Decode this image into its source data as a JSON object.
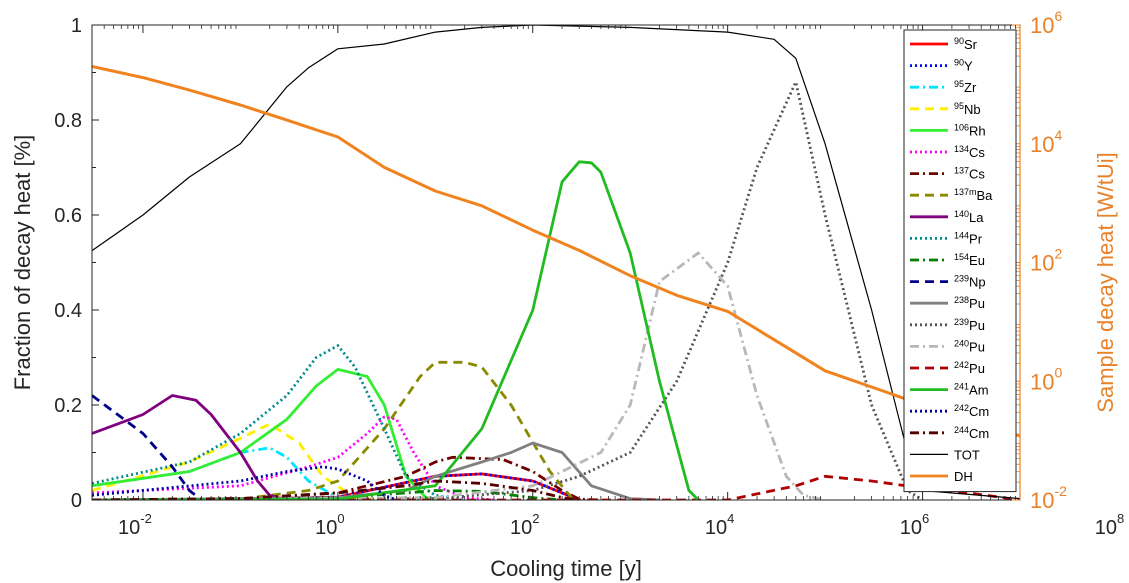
{
  "chart_data": {
    "type": "line",
    "xlabel": "Cooling time [y]",
    "ylabel": "Fraction of decay heat [%]",
    "y2label": "Sample decay heat [W/tUi]",
    "xscale": "log",
    "xlim": [
      0.003,
      10000000
    ],
    "ylim": [
      0,
      1
    ],
    "y2scale": "log",
    "y2lim": [
      0.01,
      1000000
    ],
    "x_ticks": [
      {
        "value": 0.01,
        "base": "10",
        "exp": "-2"
      },
      {
        "value": 1,
        "base": "10",
        "exp": "0"
      },
      {
        "value": 100,
        "base": "10",
        "exp": "2"
      },
      {
        "value": 10000,
        "base": "10",
        "exp": "4"
      },
      {
        "value": 1000000,
        "base": "10",
        "exp": "6"
      },
      {
        "value": 100000000,
        "base": "10",
        "exp": "8"
      }
    ],
    "y_ticks": [
      "0",
      "0.2",
      "0.4",
      "0.6",
      "0.8",
      "1"
    ],
    "y2_ticks": [
      {
        "value": 0.01,
        "base": "10",
        "exp": "-2"
      },
      {
        "value": 1,
        "base": "10",
        "exp": "0"
      },
      {
        "value": 100,
        "base": "10",
        "exp": "2"
      },
      {
        "value": 10000,
        "base": "10",
        "exp": "4"
      },
      {
        "value": 1000000,
        "base": "10",
        "exp": "6"
      }
    ],
    "legend_position": "right",
    "series": [
      {
        "mass": "90",
        "sym": "Sr",
        "color": "#ff0000",
        "style": "solid",
        "axis": "left",
        "points": [
          [
            0.003,
            0
          ],
          [
            0.1,
            0.002
          ],
          [
            1,
            0.006
          ],
          [
            10,
            0.05
          ],
          [
            30,
            0.055
          ],
          [
            100,
            0.04
          ],
          [
            200,
            0.015
          ],
          [
            300,
            0
          ]
        ]
      },
      {
        "mass": "90",
        "sym": "Y",
        "color": "#0000ff",
        "style": "dotted",
        "axis": "left",
        "points": [
          [
            0.003,
            0
          ],
          [
            0.1,
            0.002
          ],
          [
            1,
            0.006
          ],
          [
            10,
            0.05
          ],
          [
            30,
            0.055
          ],
          [
            100,
            0.04
          ],
          [
            200,
            0.015
          ],
          [
            300,
            0
          ]
        ]
      },
      {
        "mass": "95",
        "sym": "Zr",
        "color": "#00e5ff",
        "style": "dashdot",
        "axis": "left",
        "points": [
          [
            0.003,
            0.03
          ],
          [
            0.03,
            0.06
          ],
          [
            0.1,
            0.1
          ],
          [
            0.2,
            0.11
          ],
          [
            0.3,
            0.09
          ],
          [
            0.5,
            0.04
          ],
          [
            1,
            0.005
          ],
          [
            2,
            0
          ]
        ]
      },
      {
        "mass": "95",
        "sym": "Nb",
        "color": "#ffee00",
        "style": "dashed",
        "axis": "left",
        "points": [
          [
            0.003,
            0.02
          ],
          [
            0.03,
            0.08
          ],
          [
            0.1,
            0.13
          ],
          [
            0.2,
            0.16
          ],
          [
            0.4,
            0.12
          ],
          [
            0.7,
            0.05
          ],
          [
            1.5,
            0.005
          ],
          [
            3,
            0
          ]
        ]
      },
      {
        "mass": "106",
        "sym": "Rh",
        "color": "#33ee33",
        "style": "solid",
        "axis": "left",
        "points": [
          [
            0.003,
            0.03
          ],
          [
            0.03,
            0.06
          ],
          [
            0.1,
            0.1
          ],
          [
            0.3,
            0.17
          ],
          [
            0.6,
            0.24
          ],
          [
            1,
            0.275
          ],
          [
            2,
            0.26
          ],
          [
            3,
            0.2
          ],
          [
            5,
            0.05
          ],
          [
            8,
            0.005
          ],
          [
            12,
            0
          ]
        ]
      },
      {
        "mass": "134",
        "sym": "Cs",
        "color": "#ff00ff",
        "style": "dotted",
        "axis": "left",
        "points": [
          [
            0.003,
            0.015
          ],
          [
            0.1,
            0.03
          ],
          [
            0.5,
            0.07
          ],
          [
            1,
            0.09
          ],
          [
            2,
            0.14
          ],
          [
            3,
            0.175
          ],
          [
            4,
            0.17
          ],
          [
            6,
            0.1
          ],
          [
            10,
            0.03
          ],
          [
            20,
            0.005
          ],
          [
            40,
            0
          ]
        ]
      },
      {
        "mass": "137",
        "sym": "Cs",
        "color": "#6e0000",
        "style": "dashdot",
        "axis": "left",
        "points": [
          [
            0.003,
            0
          ],
          [
            0.1,
            0.003
          ],
          [
            1,
            0.015
          ],
          [
            5,
            0.05
          ],
          [
            10,
            0.08
          ],
          [
            15,
            0.09
          ],
          [
            50,
            0.085
          ],
          [
            100,
            0.06
          ],
          [
            200,
            0.02
          ],
          [
            300,
            0.002
          ],
          [
            500,
            0
          ]
        ]
      },
      {
        "mass": "137m",
        "sym": "Ba",
        "color": "#8a8a00",
        "style": "dashed",
        "axis": "left",
        "points": [
          [
            0.003,
            0
          ],
          [
            0.1,
            0.002
          ],
          [
            0.5,
            0.02
          ],
          [
            1,
            0.04
          ],
          [
            3,
            0.15
          ],
          [
            7,
            0.26
          ],
          [
            10,
            0.29
          ],
          [
            20,
            0.29
          ],
          [
            30,
            0.28
          ],
          [
            60,
            0.2
          ],
          [
            150,
            0.06
          ],
          [
            250,
            0.005
          ],
          [
            300,
            0
          ]
        ]
      },
      {
        "mass": "140",
        "sym": "La",
        "color": "#800080",
        "style": "solid",
        "axis": "left",
        "points": [
          [
            0.003,
            0.14
          ],
          [
            0.01,
            0.18
          ],
          [
            0.02,
            0.22
          ],
          [
            0.035,
            0.21
          ],
          [
            0.05,
            0.18
          ],
          [
            0.1,
            0.1
          ],
          [
            0.15,
            0.04
          ],
          [
            0.2,
            0.01
          ],
          [
            0.3,
            0
          ]
        ]
      },
      {
        "mass": "144",
        "sym": "Pr",
        "color": "#008b8b",
        "style": "dotted",
        "axis": "left",
        "points": [
          [
            0.003,
            0.035
          ],
          [
            0.03,
            0.08
          ],
          [
            0.1,
            0.14
          ],
          [
            0.3,
            0.22
          ],
          [
            0.6,
            0.3
          ],
          [
            1,
            0.325
          ],
          [
            1.5,
            0.28
          ],
          [
            3,
            0.15
          ],
          [
            5,
            0.05
          ],
          [
            10,
            0.01
          ],
          [
            20,
            0
          ]
        ]
      },
      {
        "mass": "154",
        "sym": "Eu",
        "color": "#008000",
        "style": "dashdot",
        "axis": "left",
        "points": [
          [
            0.003,
            0
          ],
          [
            1,
            0.005
          ],
          [
            5,
            0.015
          ],
          [
            10,
            0.02
          ],
          [
            30,
            0.018
          ],
          [
            100,
            0.005
          ],
          [
            200,
            0
          ]
        ]
      },
      {
        "mass": "239",
        "sym": "Np",
        "color": "#00008b",
        "style": "dashed",
        "axis": "left",
        "points": [
          [
            0.003,
            0.22
          ],
          [
            0.01,
            0.14
          ],
          [
            0.02,
            0.07
          ],
          [
            0.03,
            0.02
          ],
          [
            0.04,
            0
          ]
        ]
      },
      {
        "mass": "238",
        "sym": "Pu",
        "color": "#808080",
        "style": "solid",
        "axis": "left",
        "points": [
          [
            0.003,
            0
          ],
          [
            1,
            0.005
          ],
          [
            5,
            0.02
          ],
          [
            10,
            0.05
          ],
          [
            30,
            0.08
          ],
          [
            60,
            0.1
          ],
          [
            100,
            0.12
          ],
          [
            200,
            0.1
          ],
          [
            400,
            0.03
          ],
          [
            1000,
            0.003
          ],
          [
            2000,
            0
          ]
        ]
      },
      {
        "mass": "239",
        "sym": "Pu",
        "color": "#555555",
        "style": "dotted",
        "axis": "left",
        "points": [
          [
            0.003,
            0
          ],
          [
            10,
            0.003
          ],
          [
            100,
            0.02
          ],
          [
            300,
            0.05
          ],
          [
            1000,
            0.1
          ],
          [
            3000,
            0.25
          ],
          [
            10000,
            0.5
          ],
          [
            20000,
            0.7
          ],
          [
            50000,
            0.88
          ],
          [
            100000,
            0.6
          ],
          [
            300000,
            0.2
          ],
          [
            700000,
            0.02
          ],
          [
            1000000,
            0
          ]
        ]
      },
      {
        "mass": "240",
        "sym": "Pu",
        "color": "#b8b8b8",
        "style": "dashdot",
        "axis": "left",
        "points": [
          [
            0.003,
            0
          ],
          [
            10,
            0.005
          ],
          [
            100,
            0.03
          ],
          [
            500,
            0.1
          ],
          [
            1000,
            0.2
          ],
          [
            2000,
            0.46
          ],
          [
            5000,
            0.52
          ],
          [
            10000,
            0.45
          ],
          [
            20000,
            0.22
          ],
          [
            40000,
            0.05
          ],
          [
            60000,
            0.01
          ],
          [
            100000,
            0
          ]
        ]
      },
      {
        "mass": "242",
        "sym": "Pu",
        "color": "#b00000",
        "style": "dashed",
        "axis": "left",
        "points": [
          [
            0.003,
            0
          ],
          [
            10000,
            0
          ],
          [
            50000,
            0.03
          ],
          [
            100000,
            0.05
          ],
          [
            300000,
            0.04
          ],
          [
            1000000,
            0.025
          ],
          [
            3000000,
            0.015
          ],
          [
            10000000,
            0
          ]
        ]
      },
      {
        "mass": "241",
        "sym": "Am",
        "color": "#22bb22",
        "style": "solid",
        "axis": "left",
        "points": [
          [
            0.003,
            0
          ],
          [
            1,
            0.002
          ],
          [
            10,
            0.03
          ],
          [
            30,
            0.15
          ],
          [
            100,
            0.4
          ],
          [
            200,
            0.67
          ],
          [
            300,
            0.712
          ],
          [
            400,
            0.71
          ],
          [
            500,
            0.69
          ],
          [
            1000,
            0.52
          ],
          [
            2000,
            0.25
          ],
          [
            4000,
            0.02
          ],
          [
            5000,
            0
          ]
        ]
      },
      {
        "mass": "242",
        "sym": "Cm",
        "color": "#0000aa",
        "style": "dotted",
        "axis": "left",
        "points": [
          [
            0.003,
            0.01
          ],
          [
            0.1,
            0.04
          ],
          [
            0.3,
            0.06
          ],
          [
            0.7,
            0.07
          ],
          [
            1,
            0.065
          ],
          [
            2,
            0.04
          ],
          [
            3,
            0.01
          ],
          [
            4,
            0
          ]
        ]
      },
      {
        "mass": "244",
        "sym": "Cm",
        "color": "#550000",
        "style": "dashdot",
        "axis": "left",
        "points": [
          [
            0.003,
            0
          ],
          [
            0.1,
            0.003
          ],
          [
            1,
            0.015
          ],
          [
            5,
            0.03
          ],
          [
            10,
            0.04
          ],
          [
            30,
            0.035
          ],
          [
            100,
            0.02
          ],
          [
            200,
            0.005
          ],
          [
            300,
            0
          ]
        ]
      },
      {
        "label": "TOT",
        "color": "#000000",
        "style": "thin",
        "axis": "left",
        "points": [
          [
            0.003,
            0.525
          ],
          [
            0.01,
            0.6
          ],
          [
            0.03,
            0.68
          ],
          [
            0.1,
            0.75
          ],
          [
            0.3,
            0.87
          ],
          [
            0.5,
            0.91
          ],
          [
            1,
            0.95
          ],
          [
            3,
            0.96
          ],
          [
            10,
            0.985
          ],
          [
            30,
            0.995
          ],
          [
            100,
            1.0
          ],
          [
            1000,
            0.995
          ],
          [
            10000,
            0.985
          ],
          [
            30000,
            0.97
          ],
          [
            50000,
            0.93
          ],
          [
            100000,
            0.75
          ],
          [
            300000,
            0.4
          ],
          [
            700000,
            0.1
          ],
          [
            1000000,
            0.02
          ],
          [
            10000000,
            0.003
          ]
        ]
      },
      {
        "label": "DH",
        "color": "#f0831e",
        "style": "thick",
        "axis": "right",
        "points": [
          [
            0.003,
            200000
          ],
          [
            0.01,
            130000
          ],
          [
            0.03,
            80000
          ],
          [
            0.1,
            45000
          ],
          [
            0.3,
            25000
          ],
          [
            1,
            13000
          ],
          [
            3,
            4000
          ],
          [
            10,
            1600
          ],
          [
            30,
            900
          ],
          [
            100,
            350
          ],
          [
            300,
            160
          ],
          [
            1000,
            60
          ],
          [
            3000,
            28
          ],
          [
            10000,
            15
          ],
          [
            30000,
            5
          ],
          [
            100000,
            1.5
          ],
          [
            300000,
            0.8
          ],
          [
            1000000,
            0.4
          ],
          [
            3000000,
            0.22
          ],
          [
            10000000,
            0.12
          ]
        ]
      }
    ]
  }
}
